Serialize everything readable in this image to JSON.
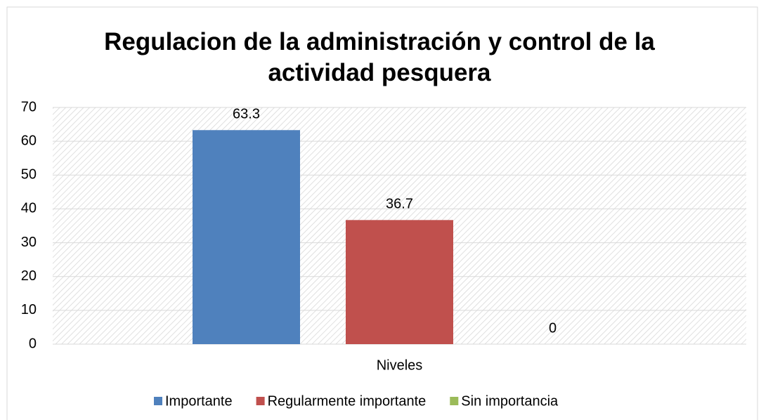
{
  "chart_data": {
    "type": "bar",
    "title": "Regulacion de la administración y control de la actividad pesquera",
    "categories": [
      "Niveles"
    ],
    "series": [
      {
        "name": "Importante",
        "color": "#4f81bd",
        "values": [
          63.3
        ]
      },
      {
        "name": "Regularmente importante",
        "color": "#c0504d",
        "values": [
          36.7
        ]
      },
      {
        "name": "Sin importancia",
        "color": "#9bbb59",
        "values": [
          0
        ]
      }
    ],
    "ylim": [
      0,
      70
    ],
    "yticks": [
      0,
      10,
      20,
      30,
      40,
      50,
      60,
      70
    ],
    "grid": true,
    "legend": "bottom"
  }
}
